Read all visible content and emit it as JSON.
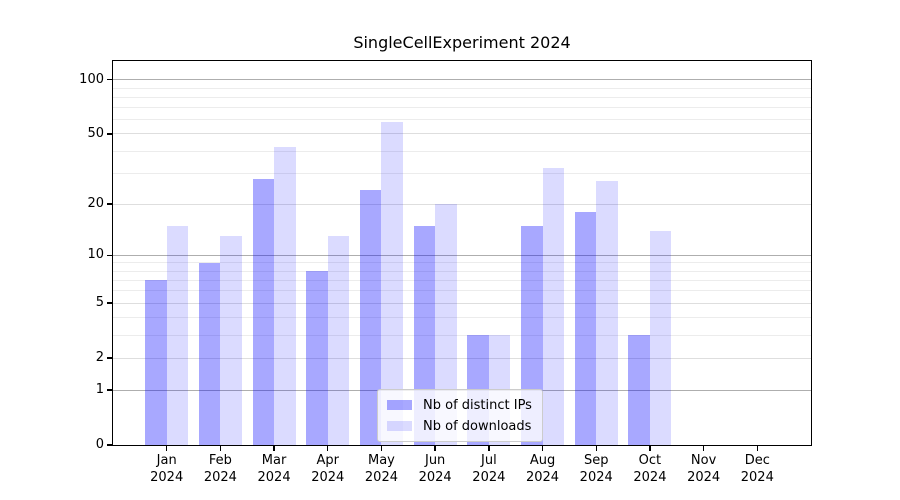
{
  "chart_data": {
    "type": "bar",
    "title": "SingleCellExperiment 2024",
    "year": "2024",
    "months": [
      "Jan",
      "Feb",
      "Mar",
      "Apr",
      "May",
      "Jun",
      "Jul",
      "Aug",
      "Sep",
      "Oct",
      "Nov",
      "Dec"
    ],
    "series": [
      {
        "name": "Nb of distinct IPs",
        "base_color": "#0000ff",
        "alpha": 0.34,
        "effective_hex": "#a8a8f8",
        "values": [
          7,
          9,
          28,
          8,
          24,
          15,
          3,
          15,
          18,
          3,
          0,
          0
        ]
      },
      {
        "name": "Nb of downloads",
        "base_color": "#0000ff",
        "alpha": 0.14,
        "effective_hex": "#dcdcfa",
        "values": [
          15,
          13,
          42,
          13,
          58,
          20,
          3,
          32,
          27,
          14,
          0,
          0
        ]
      }
    ],
    "y_axis": {
      "scale": "log10(1+x)",
      "ticks": [
        0,
        1,
        2,
        5,
        10,
        20,
        50,
        100
      ],
      "max": 127,
      "decade_gridlines": [
        1,
        10,
        100
      ],
      "labeled_gridlines": [
        2,
        5,
        20,
        50
      ],
      "minor_gridlines": [
        3,
        4,
        6,
        7,
        8,
        9,
        30,
        40,
        60,
        70,
        80,
        90
      ]
    },
    "legend": {
      "position": "lower center",
      "entries": [
        "Nb of distinct IPs",
        "Nb of downloads"
      ]
    },
    "grid": true,
    "spine_color": "#000000",
    "background": "#ffffff"
  }
}
